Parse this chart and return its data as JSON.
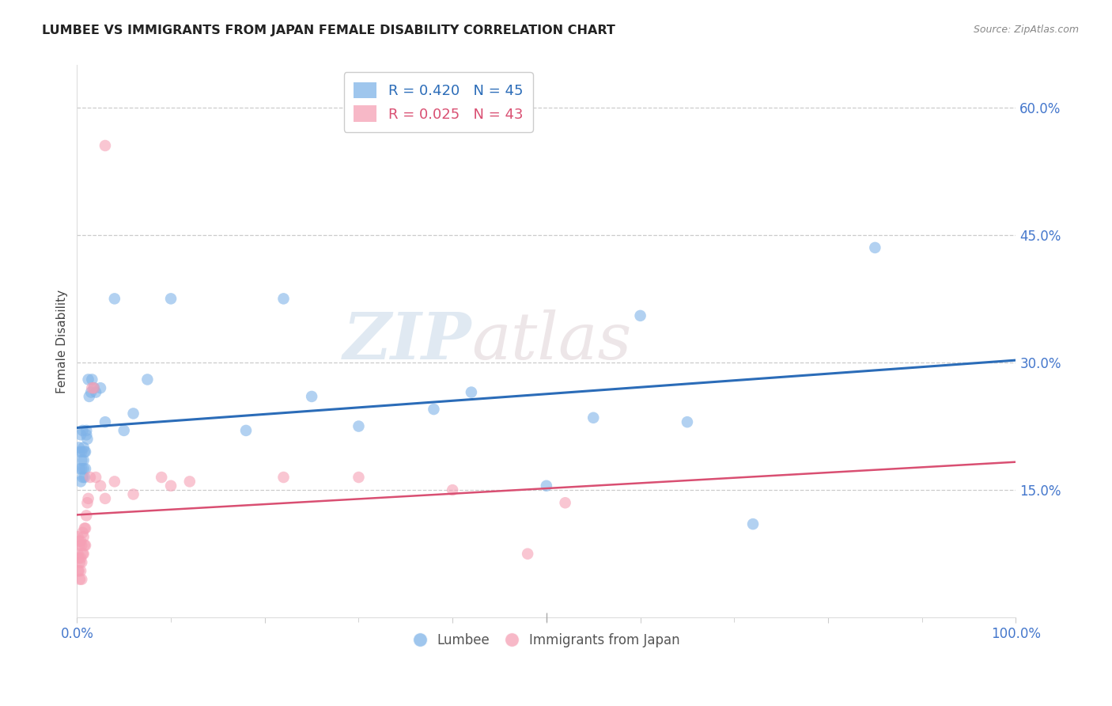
{
  "title": "LUMBEE VS IMMIGRANTS FROM JAPAN FEMALE DISABILITY CORRELATION CHART",
  "source": "Source: ZipAtlas.com",
  "ylabel": "Female Disability",
  "xlim": [
    0.0,
    1.0
  ],
  "ylim": [
    0.0,
    0.65
  ],
  "lumbee_R": 0.42,
  "lumbee_N": 45,
  "japan_R": 0.025,
  "japan_N": 43,
  "lumbee_color": "#7fb3e8",
  "japan_color": "#f5a0b5",
  "lumbee_line_color": "#2b6cb8",
  "japan_line_color": "#d94f72",
  "watermark_zip": "ZIP",
  "watermark_atlas": "atlas",
  "lumbee_x": [
    0.002,
    0.003,
    0.003,
    0.004,
    0.004,
    0.005,
    0.005,
    0.005,
    0.006,
    0.006,
    0.007,
    0.007,
    0.007,
    0.008,
    0.008,
    0.009,
    0.009,
    0.01,
    0.01,
    0.011,
    0.012,
    0.013,
    0.015,
    0.016,
    0.018,
    0.02,
    0.025,
    0.03,
    0.04,
    0.05,
    0.06,
    0.075,
    0.1,
    0.18,
    0.22,
    0.25,
    0.3,
    0.38,
    0.42,
    0.5,
    0.55,
    0.6,
    0.65,
    0.72,
    0.85
  ],
  "lumbee_y": [
    0.2,
    0.195,
    0.175,
    0.215,
    0.16,
    0.185,
    0.175,
    0.195,
    0.22,
    0.165,
    0.2,
    0.185,
    0.175,
    0.195,
    0.165,
    0.195,
    0.175,
    0.215,
    0.22,
    0.21,
    0.28,
    0.26,
    0.265,
    0.28,
    0.27,
    0.265,
    0.27,
    0.23,
    0.375,
    0.22,
    0.24,
    0.28,
    0.375,
    0.22,
    0.375,
    0.26,
    0.225,
    0.245,
    0.265,
    0.155,
    0.235,
    0.355,
    0.23,
    0.11,
    0.435
  ],
  "japan_x": [
    0.001,
    0.001,
    0.001,
    0.002,
    0.002,
    0.002,
    0.003,
    0.003,
    0.003,
    0.004,
    0.004,
    0.004,
    0.005,
    0.005,
    0.005,
    0.006,
    0.006,
    0.007,
    0.007,
    0.008,
    0.008,
    0.009,
    0.009,
    0.01,
    0.011,
    0.012,
    0.014,
    0.016,
    0.018,
    0.02,
    0.025,
    0.03,
    0.04,
    0.06,
    0.09,
    0.1,
    0.12,
    0.22,
    0.3,
    0.4,
    0.48,
    0.52,
    0.03
  ],
  "japan_y": [
    0.095,
    0.075,
    0.055,
    0.09,
    0.07,
    0.055,
    0.085,
    0.065,
    0.045,
    0.09,
    0.07,
    0.055,
    0.085,
    0.065,
    0.045,
    0.1,
    0.075,
    0.095,
    0.075,
    0.105,
    0.085,
    0.105,
    0.085,
    0.12,
    0.135,
    0.14,
    0.165,
    0.27,
    0.27,
    0.165,
    0.155,
    0.14,
    0.16,
    0.145,
    0.165,
    0.155,
    0.16,
    0.165,
    0.165,
    0.15,
    0.075,
    0.135,
    0.555
  ]
}
